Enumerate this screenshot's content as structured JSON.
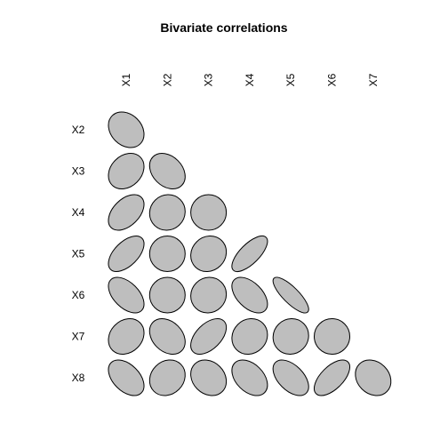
{
  "chart_data": {
    "type": "ellipse-correlation-matrix",
    "title": "Bivariate correlations",
    "column_labels": [
      "X1",
      "X2",
      "X3",
      "X4",
      "X5",
      "X6",
      "X7"
    ],
    "row_labels": [
      "X2",
      "X3",
      "X4",
      "X5",
      "X6",
      "X7",
      "X8"
    ],
    "correlations": [
      [
        -0.25
      ],
      [
        0.25,
        -0.3
      ],
      [
        0.45,
        0.05,
        0.0
      ],
      [
        0.55,
        0.0,
        0.1,
        0.7
      ],
      [
        -0.5,
        0.0,
        0.05,
        -0.5,
        -0.8
      ],
      [
        0.2,
        -0.3,
        0.5,
        0.1,
        0.05,
        0.0
      ],
      [
        -0.45,
        0.15,
        -0.2,
        -0.4,
        -0.5,
        0.6,
        -0.2
      ]
    ],
    "fill_color": "#bebebe",
    "stroke_color": "#000000"
  }
}
